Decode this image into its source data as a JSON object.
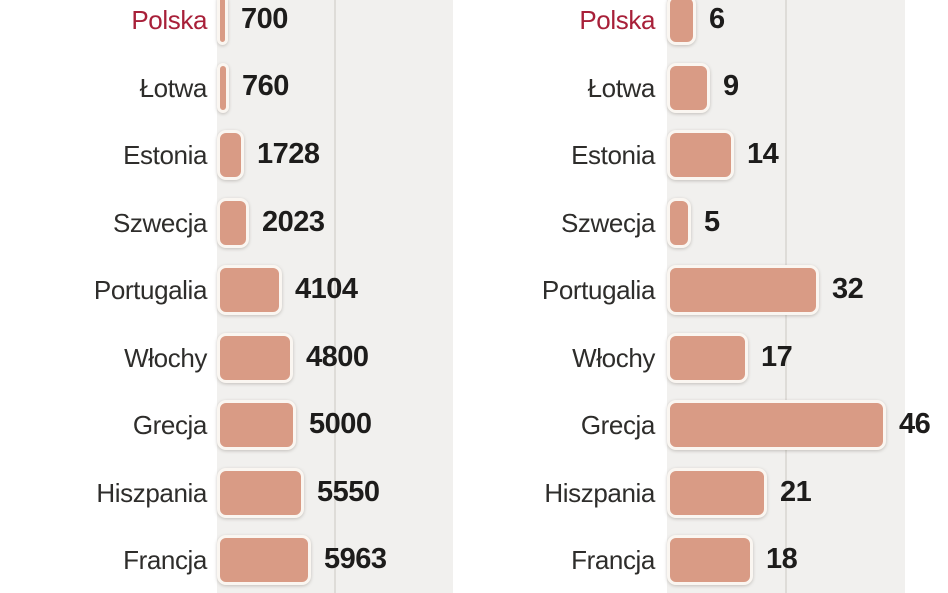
{
  "style": {
    "bar_fill": "#d99b85",
    "bar_border": "#faf6f1",
    "plot_background": "#f1f0ee",
    "gridline_color": "#dedcd8",
    "label_color": "#2e2d2b",
    "value_color": "#1d1c1b",
    "highlight_color": "#a82039"
  },
  "chart_data": [
    {
      "type": "bar",
      "orientation": "horizontal",
      "categories": [
        "Polska",
        "Łotwa",
        "Estonia",
        "Szwecja",
        "Portugalia",
        "Włochy",
        "Grecja",
        "Hiszpania",
        "Francja"
      ],
      "values": [
        700,
        760,
        1728,
        2023,
        4104,
        4800,
        5000,
        5550,
        5963
      ],
      "value_labels": true,
      "xlim": [
        0,
        15000
      ],
      "gridlines": [
        7500
      ],
      "highlight_category": "Polska",
      "legend": false,
      "title": "",
      "xlabel": "",
      "ylabel": ""
    },
    {
      "type": "bar",
      "orientation": "horizontal",
      "categories": [
        "Polska",
        "Łotwa",
        "Estonia",
        "Szwecja",
        "Portugalia",
        "Włochy",
        "Grecja",
        "Hiszpania",
        "Francja"
      ],
      "values": [
        6,
        9,
        14,
        5,
        32,
        17,
        46,
        21,
        18
      ],
      "value_labels": true,
      "xlim": [
        0,
        50
      ],
      "gridlines": [
        25
      ],
      "highlight_category": "Polska",
      "legend": false,
      "title": "",
      "xlabel": "",
      "ylabel": ""
    }
  ]
}
